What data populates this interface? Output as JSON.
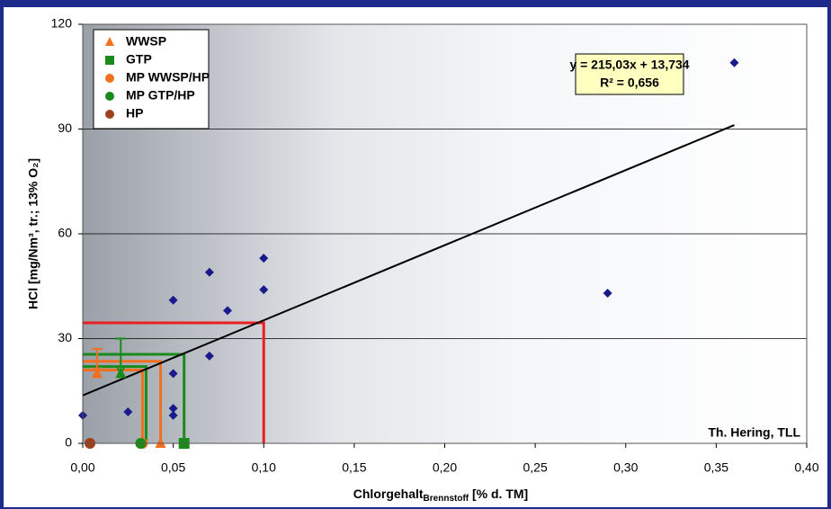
{
  "chart_data": {
    "type": "scatter",
    "y_label": "HCl [mg/Nm³, tr.; 13% O₂]",
    "x_label": {
      "text": "Chlorgehalt",
      "sub": "Brennstoff",
      "rest": " [% d. TM]"
    },
    "xlim": [
      0,
      0.4
    ],
    "ylim": [
      0,
      120
    ],
    "xticks": [
      {
        "value": 0,
        "label": "0,00"
      },
      {
        "value": 0.05,
        "label": "0,05"
      },
      {
        "value": 0.1,
        "label": "0,10"
      },
      {
        "value": 0.15,
        "label": "0,15"
      },
      {
        "value": 0.2,
        "label": "0,20"
      },
      {
        "value": 0.25,
        "label": "0,25"
      },
      {
        "value": 0.3,
        "label": "0,30"
      },
      {
        "value": 0.35,
        "label": "0,35"
      },
      {
        "value": 0.4,
        "label": "0,40"
      }
    ],
    "yticks": [
      0,
      30,
      60,
      90,
      120
    ],
    "grid": true,
    "points": {
      "color": "#1a1a8c",
      "marker": "diamond",
      "x": [
        0,
        0.025,
        0.05,
        0.05,
        0.05,
        0.05,
        0.07,
        0.07,
        0.08,
        0.1,
        0.1,
        0.29,
        0.36
      ],
      "values": [
        8,
        9,
        41,
        20,
        10,
        8,
        49,
        25,
        38,
        53,
        44,
        43,
        109
      ]
    },
    "series": [
      {
        "name": "WWSP",
        "color": "#f07020",
        "marker": "triangle",
        "x": [
          0.043,
          0.008
        ],
        "values": [
          0,
          20
        ],
        "errors": [
          null,
          7
        ]
      },
      {
        "name": "GTP",
        "color": "#1a8a1a",
        "marker": "square",
        "markers": [
          "square",
          "triangle"
        ],
        "x": [
          0.056,
          0.021
        ],
        "values": [
          0,
          20
        ],
        "errors": [
          null,
          10
        ]
      },
      {
        "name": "MP WWSP/HP",
        "color": "#f07020",
        "marker": "circle",
        "x": [
          0.033
        ],
        "values": [
          0
        ]
      },
      {
        "name": "MP GTP/HP",
        "color": "#1a8a1a",
        "marker": "circle",
        "x": [
          0.032
        ],
        "values": [
          0
        ]
      },
      {
        "name": "HP",
        "color": "#a0401a",
        "marker": "circle",
        "x": [
          0.004
        ],
        "values": [
          0
        ]
      }
    ],
    "guides": [
      {
        "color": "#e82020",
        "x": 0.1,
        "y": 34.5
      },
      {
        "color": "#f07020",
        "x": 0.043,
        "y": 23.5
      },
      {
        "color": "#f07020",
        "x": 0.033,
        "y": 21
      },
      {
        "color": "#1a8a1a",
        "x": 0.056,
        "y": 25.5
      },
      {
        "color": "#1a8a1a",
        "x": 0.035,
        "y": 22
      }
    ],
    "trendline": {
      "equation": "y = 215,03x + 13,734",
      "r2": "R² = 0,656",
      "slope": 215.03,
      "intercept": 13.734,
      "x_range": [
        0,
        0.36
      ],
      "color": "#000000"
    },
    "credit": "Th. Hering, TLL"
  }
}
